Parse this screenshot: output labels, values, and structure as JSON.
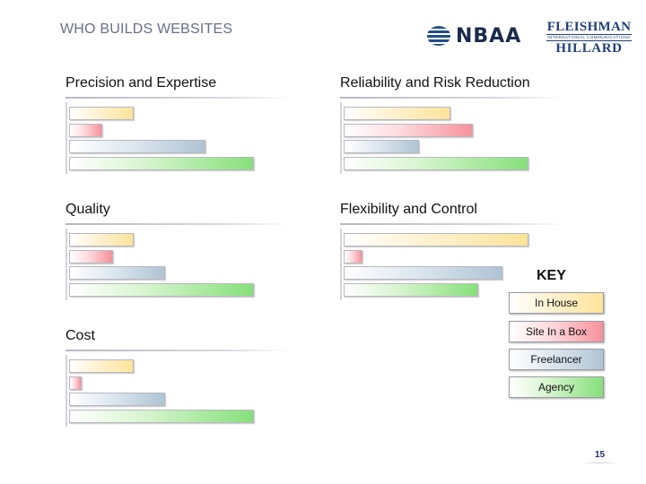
{
  "header": {
    "title": "WHO BUILDS WEBSITES"
  },
  "logos": {
    "nbaa": "NBAA",
    "fleishman": {
      "top": "FLEISHMAN",
      "sub": "INTERNATIONAL COMMUNICATIONS",
      "bottom": "HILLARD"
    }
  },
  "colors": {
    "in_house": "#fde39a",
    "site_in_a_box": "#f6929c",
    "freelancer": "#afc4d4",
    "agency": "#86e07a"
  },
  "key": {
    "title": "KEY",
    "items": [
      "In House",
      "Site In a Box",
      "Freelancer",
      "Agency"
    ]
  },
  "chart_data": [
    {
      "type": "bar",
      "orientation": "horizontal",
      "title": "Precision and Expertise",
      "categories": [
        "In House",
        "Site In a Box",
        "Freelancer",
        "Agency"
      ],
      "values": [
        35,
        18,
        74,
        100
      ],
      "xlim": [
        0,
        100
      ]
    },
    {
      "type": "bar",
      "orientation": "horizontal",
      "title": "Reliability and Risk Reduction",
      "categories": [
        "In House",
        "Site In a Box",
        "Freelancer",
        "Agency"
      ],
      "values": [
        58,
        70,
        41,
        100
      ],
      "xlim": [
        0,
        100
      ]
    },
    {
      "type": "bar",
      "orientation": "horizontal",
      "title": "Quality",
      "categories": [
        "In House",
        "Site In a Box",
        "Freelancer",
        "Agency"
      ],
      "values": [
        35,
        24,
        52,
        100
      ],
      "xlim": [
        0,
        100
      ]
    },
    {
      "type": "bar",
      "orientation": "horizontal",
      "title": "Flexibility and Control",
      "categories": [
        "In House",
        "Site In a Box",
        "Freelancer",
        "Agency"
      ],
      "values": [
        100,
        10,
        86,
        73
      ],
      "xlim": [
        0,
        100
      ]
    },
    {
      "type": "bar",
      "orientation": "horizontal",
      "title": "Cost",
      "categories": [
        "In House",
        "Site In a Box",
        "Freelancer",
        "Agency"
      ],
      "values": [
        35,
        7,
        52,
        100
      ],
      "xlim": [
        0,
        100
      ]
    }
  ],
  "page_number": "15"
}
